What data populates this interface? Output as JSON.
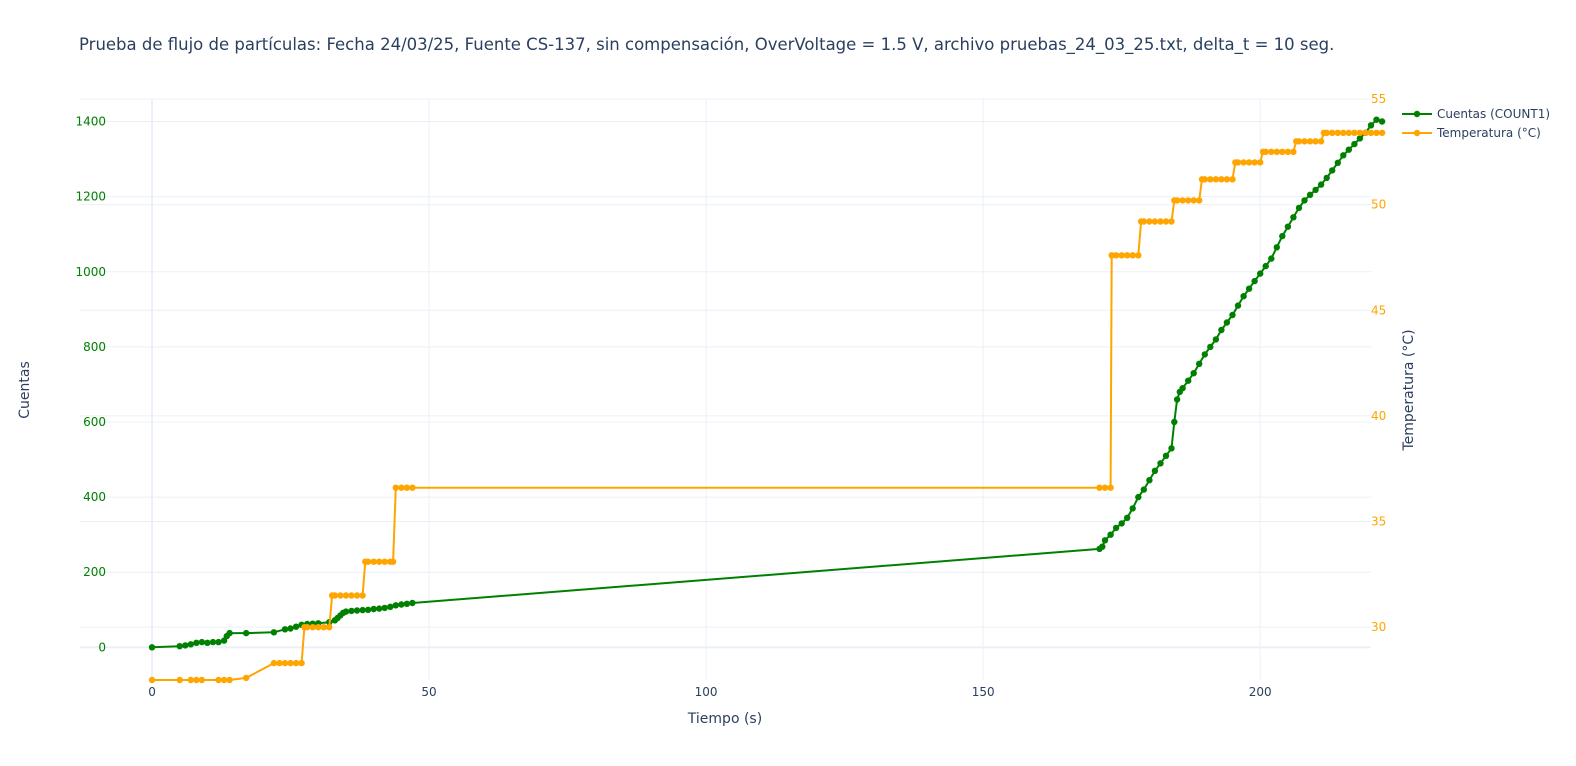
{
  "chart_data": {
    "type": "line",
    "title": "Prueba de flujo de partículas: Fecha 24/03/25, Fuente CS-137, sin compensación, OverVoltage = 1.5 V, archivo pruebas_24_03_25.txt, delta_t = 10 seg.",
    "xlabel": "Tiempo (s)",
    "ylabel": "Cuentas",
    "y2label": "Temperatura (°C)",
    "xlim": [
      -13,
      220
    ],
    "ylim": [
      -87,
      1460
    ],
    "y2lim": [
      27.5,
      55
    ],
    "x_ticks": [
      "0",
      "50",
      "100",
      "150",
      "200"
    ],
    "y_ticks": [
      "0",
      "200",
      "400",
      "600",
      "800",
      "1000",
      "1200",
      "1400"
    ],
    "y2_ticks": [
      "30",
      "35",
      "40",
      "45",
      "50",
      "55"
    ],
    "grid": true,
    "legend_position": "top-right",
    "colors": {
      "counts": "#008000",
      "temperature": "#ffa500",
      "text": "#2a3f5f",
      "grid": "#ebf0f8"
    },
    "series": [
      {
        "name": "Cuentas (COUNT1)",
        "axis": "left",
        "x": [
          0,
          5,
          6,
          7,
          8,
          9,
          10,
          11,
          12,
          13,
          13.5,
          14,
          17,
          22,
          24,
          25,
          26,
          27,
          28,
          29,
          30,
          32,
          33,
          33.5,
          34,
          34.5,
          35,
          36,
          37,
          38,
          39,
          40,
          41,
          42,
          43,
          44,
          45,
          46,
          47,
          171,
          171.5,
          172,
          173,
          174,
          175,
          176,
          177,
          178,
          179,
          180,
          181,
          182,
          183,
          184,
          184.5,
          185,
          185.5,
          186,
          187,
          188,
          189,
          190,
          191,
          192,
          193,
          194,
          195,
          196,
          197,
          198,
          199,
          200,
          201,
          202,
          203,
          204,
          205,
          206,
          207,
          208,
          209,
          210,
          211,
          212,
          213,
          214,
          215,
          216,
          217,
          218,
          219,
          220,
          221,
          222
        ],
        "values": [
          0,
          3,
          5,
          8,
          12,
          14,
          12,
          14,
          14,
          18,
          30,
          38,
          38,
          40,
          48,
          50,
          55,
          60,
          62,
          63,
          64,
          67,
          72,
          78,
          85,
          92,
          95,
          97,
          98,
          99,
          100,
          102,
          103,
          105,
          108,
          112,
          114,
          116,
          118,
          262,
          268,
          285,
          300,
          318,
          330,
          345,
          370,
          400,
          420,
          445,
          470,
          490,
          510,
          530,
          600,
          660,
          680,
          690,
          710,
          730,
          755,
          780,
          800,
          820,
          845,
          865,
          885,
          910,
          935,
          955,
          975,
          995,
          1015,
          1035,
          1065,
          1095,
          1120,
          1145,
          1170,
          1190,
          1205,
          1218,
          1232,
          1250,
          1270,
          1290,
          1310,
          1325,
          1340,
          1355,
          1370,
          1390,
          1405,
          1400
        ]
      },
      {
        "name": "Temperatura (°C)",
        "axis": "right",
        "x": [
          0,
          5,
          7,
          8,
          9,
          12,
          13,
          14,
          17,
          22,
          23,
          24,
          25,
          26,
          27,
          27.5,
          28,
          29,
          30,
          31,
          32,
          32.5,
          33,
          34,
          35,
          36,
          37,
          38,
          38.5,
          39,
          40,
          41,
          42,
          43,
          43.5,
          44,
          45,
          46,
          47,
          171,
          172,
          173,
          173.2,
          174,
          175,
          176,
          177,
          178,
          178.5,
          179,
          180,
          181,
          182,
          183,
          184,
          184.5,
          185,
          186,
          187,
          188,
          189,
          189.5,
          190,
          191,
          192,
          193,
          194,
          195,
          195.5,
          196,
          197,
          198,
          199,
          200,
          200.5,
          201,
          202,
          203,
          204,
          205,
          206,
          206.5,
          207,
          208,
          209,
          210,
          211,
          211.5,
          212,
          213,
          214,
          215,
          216,
          217,
          218,
          219,
          220,
          221,
          222
        ],
        "values": [
          27.5,
          27.5,
          27.5,
          27.5,
          27.5,
          27.5,
          27.5,
          27.5,
          27.6,
          28.3,
          28.3,
          28.3,
          28.3,
          28.3,
          28.3,
          30.0,
          30.0,
          30.0,
          30.0,
          30.0,
          30.0,
          31.5,
          31.5,
          31.5,
          31.5,
          31.5,
          31.5,
          31.5,
          33.1,
          33.1,
          33.1,
          33.1,
          33.1,
          33.1,
          33.1,
          36.6,
          36.6,
          36.6,
          36.6,
          36.6,
          36.6,
          36.6,
          47.6,
          47.6,
          47.6,
          47.6,
          47.6,
          47.6,
          49.2,
          49.2,
          49.2,
          49.2,
          49.2,
          49.2,
          49.2,
          50.2,
          50.2,
          50.2,
          50.2,
          50.2,
          50.2,
          51.2,
          51.2,
          51.2,
          51.2,
          51.2,
          51.2,
          51.2,
          52.0,
          52.0,
          52.0,
          52.0,
          52.0,
          52.0,
          52.5,
          52.5,
          52.5,
          52.5,
          52.5,
          52.5,
          52.5,
          53.0,
          53.0,
          53.0,
          53.0,
          53.0,
          53.0,
          53.4,
          53.4,
          53.4,
          53.4,
          53.4,
          53.4,
          53.4,
          53.4,
          53.4,
          53.4,
          53.4,
          53.4
        ]
      }
    ]
  }
}
